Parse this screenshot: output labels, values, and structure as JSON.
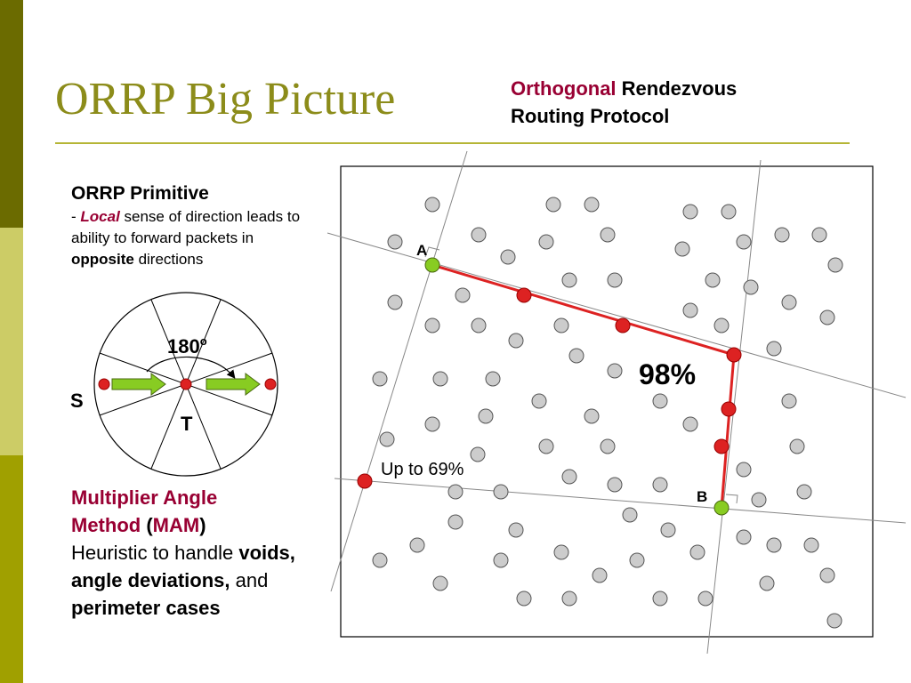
{
  "slide": {
    "title": "ORRP Big Picture",
    "subtitle": {
      "word1": "Orthogonal",
      "rest_line1": " Rendezvous",
      "line2": "Routing Protocol"
    }
  },
  "primitive": {
    "heading": "ORRP Primitive",
    "dash": "- ",
    "local": "Local",
    "text1": " sense of direction leads to ability to forward packets in ",
    "opposite": "opposite",
    "text2": " directions"
  },
  "compass": {
    "angle_label": "180",
    "angle_unit": "o",
    "s_label": "S",
    "t_label": "T"
  },
  "mam": {
    "line1": "Multiplier Angle",
    "method": "Method",
    "open": " (",
    "abbr": "MAM",
    "close": ")",
    "text1": "Heuristic to handle ",
    "voids": "voids, angle deviations,",
    "and": " and ",
    "perimeter": "perimeter cases"
  },
  "network": {
    "label_a": "A",
    "label_b": "B",
    "pct_main": "98%",
    "pct_other": "Up to 69%"
  },
  "colors": {
    "title": "#8c8c1a",
    "accent_crimson": "#990033",
    "route_red": "#dd2222",
    "endpoint_green": "#88cc22",
    "node_gray": "#cccccc"
  }
}
